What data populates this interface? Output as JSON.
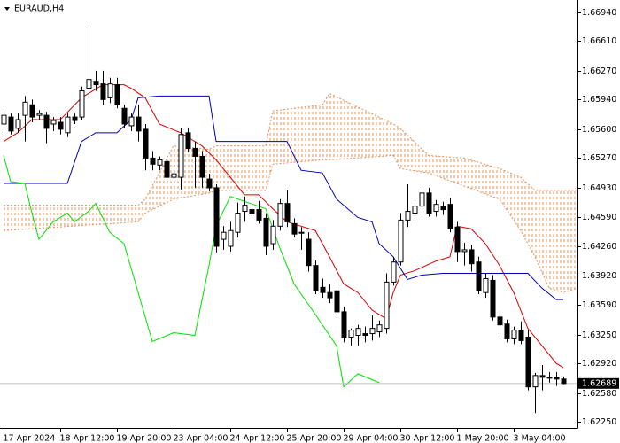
{
  "chart_data": {
    "type": "candlestick",
    "title": "EURAUD,H4",
    "categories": [
      "17 Apr 2024",
      null,
      null,
      null,
      null,
      null,
      null,
      null,
      "18 Apr 12:00",
      null,
      null,
      null,
      null,
      null,
      null,
      null,
      "19 Apr 20:00",
      null,
      null,
      null,
      null,
      null,
      null,
      null,
      "23 Apr 04:00",
      null,
      null,
      null,
      null,
      null,
      null,
      null,
      "24 Apr 12:00",
      null,
      null,
      null,
      null,
      null,
      null,
      null,
      "25 Apr 20:00",
      null,
      null,
      null,
      null,
      null,
      null,
      null,
      "29 Apr 04:00",
      null,
      null,
      null,
      null,
      null,
      null,
      null,
      "30 Apr 12:00",
      null,
      null,
      null,
      null,
      null,
      null,
      null,
      "1 May 20:00",
      null,
      null,
      null,
      null,
      null,
      null,
      null,
      "3 May 04:00",
      null,
      null,
      null,
      null,
      null,
      null,
      null
    ],
    "open": [
      1.6566,
      1.6574,
      1.6561,
      1.6576,
      1.6588,
      1.6576,
      1.6576,
      1.6566,
      1.6568,
      1.6556,
      1.6574,
      1.6574,
      1.6607,
      1.6615,
      1.6612,
      1.6596,
      1.6611,
      1.6584,
      1.6564,
      1.6574,
      1.656,
      1.6527,
      1.6519,
      1.6523,
      1.6505,
      1.6505,
      1.6556,
      1.6538,
      1.6529,
      1.6503,
      1.6493,
      1.6434,
      1.6426,
      1.6442,
      1.6466,
      1.6468,
      1.6468,
      1.6458,
      1.6429,
      1.6449,
      1.6475,
      1.6452,
      1.6442,
      1.6434,
      1.6404,
      1.6379,
      1.6373,
      1.6375,
      1.6351,
      1.6322,
      1.6324,
      1.6326,
      1.6326,
      1.6328,
      1.6332,
      1.6385,
      1.6408,
      1.6456,
      1.6464,
      1.6472,
      1.6487,
      1.6466,
      1.6472,
      1.6474,
      1.6448,
      1.642,
      1.6422,
      1.6408,
      1.6373,
      1.6387,
      1.6345,
      1.6337,
      1.632,
      1.633,
      1.6322,
      1.6265,
      1.6278,
      1.6276,
      1.6276,
      1.6274
    ],
    "high": [
      1.6581,
      1.6578,
      1.6578,
      1.6598,
      1.6594,
      1.6582,
      1.658,
      1.6574,
      1.6574,
      1.6578,
      1.6578,
      1.6609,
      1.6683,
      1.6627,
      1.6627,
      1.6619,
      1.6619,
      1.6588,
      1.6578,
      1.6588,
      1.6566,
      1.6535,
      1.6529,
      1.6527,
      1.6515,
      1.6561,
      1.6562,
      1.6546,
      1.6535,
      1.6509,
      1.6497,
      1.6449,
      1.6454,
      1.6476,
      1.6483,
      1.6475,
      1.6478,
      1.6464,
      1.6456,
      1.648,
      1.649,
      1.6458,
      1.6448,
      1.6442,
      1.641,
      1.6389,
      1.6383,
      1.6381,
      1.6357,
      1.6332,
      1.6336,
      1.6334,
      1.6347,
      1.6341,
      1.6395,
      1.6414,
      1.6464,
      1.6497,
      1.6479,
      1.6491,
      1.6493,
      1.6479,
      1.6477,
      1.6481,
      1.6454,
      1.643,
      1.6428,
      1.6414,
      1.6395,
      1.6393,
      1.6351,
      1.6342,
      1.6334,
      1.634,
      1.633,
      1.6281,
      1.629,
      1.6282,
      1.6282,
      1.6277
    ],
    "low": [
      1.6556,
      1.6554,
      1.6556,
      1.6546,
      1.6568,
      1.657,
      1.6544,
      1.6558,
      1.6554,
      1.6551,
      1.6566,
      1.657,
      1.6596,
      1.6604,
      1.6588,
      1.659,
      1.6584,
      1.6561,
      1.6558,
      1.6546,
      1.6513,
      1.6513,
      1.6513,
      1.6499,
      1.6489,
      1.6491,
      1.6534,
      1.6493,
      1.6493,
      1.6489,
      1.6419,
      1.6422,
      1.642,
      1.6436,
      1.6454,
      1.6458,
      1.6452,
      1.6416,
      1.6422,
      1.6444,
      1.6448,
      1.6436,
      1.6422,
      1.6397,
      1.6371,
      1.6367,
      1.6361,
      1.6347,
      1.6316,
      1.6312,
      1.6312,
      1.6316,
      1.6318,
      1.6322,
      1.6326,
      1.6381,
      1.6404,
      1.6448,
      1.6456,
      1.6462,
      1.646,
      1.646,
      1.6462,
      1.6442,
      1.6408,
      1.6404,
      1.6397,
      1.6371,
      1.6367,
      1.6341,
      1.6326,
      1.6316,
      1.6314,
      1.6314,
      1.6261,
      1.6235,
      1.6261,
      1.627,
      1.6266,
      1.6268
    ],
    "close": [
      1.6576,
      1.6558,
      1.6571,
      1.6591,
      1.6574,
      1.6578,
      1.6561,
      1.657,
      1.656,
      1.6574,
      1.657,
      1.6604,
      1.6617,
      1.6611,
      1.6594,
      1.6612,
      1.6588,
      1.6566,
      1.6574,
      1.6558,
      1.6527,
      1.652,
      1.6525,
      1.6505,
      1.6509,
      1.6554,
      1.6538,
      1.6529,
      1.6505,
      1.6493,
      1.6426,
      1.6442,
      1.6444,
      1.6464,
      1.6473,
      1.6464,
      1.6456,
      1.6426,
      1.6449,
      1.6475,
      1.6454,
      1.644,
      1.6442,
      1.6404,
      1.6375,
      1.6373,
      1.6367,
      1.6351,
      1.6322,
      1.633,
      1.6332,
      1.6324,
      1.6332,
      1.6336,
      1.6385,
      1.6408,
      1.6456,
      1.6466,
      1.6472,
      1.6487,
      1.6464,
      1.6474,
      1.6468,
      1.6446,
      1.642,
      1.6422,
      1.6406,
      1.6375,
      1.6389,
      1.6345,
      1.6336,
      1.632,
      1.633,
      1.6318,
      1.6265,
      1.6278,
      1.6276,
      1.6275,
      1.6274,
      1.62689
    ],
    "xlim": [
      -0.5,
      81
    ],
    "ylim": [
      1.6218,
      1.6708
    ],
    "yticks": [
      {
        "value": 1.6694,
        "label": "1.66940"
      },
      {
        "value": 1.6661,
        "label": "1.66610"
      },
      {
        "value": 1.6627,
        "label": "1.66270"
      },
      {
        "value": 1.6594,
        "label": "1.65940"
      },
      {
        "value": 1.656,
        "label": "1.65600"
      },
      {
        "value": 1.6527,
        "label": "1.65270"
      },
      {
        "value": 1.6493,
        "label": "1.64930"
      },
      {
        "value": 1.6459,
        "label": "1.64590"
      },
      {
        "value": 1.6426,
        "label": "1.64260"
      },
      {
        "value": 1.6392,
        "label": "1.63920"
      },
      {
        "value": 1.6359,
        "label": "1.63590"
      },
      {
        "value": 1.6325,
        "label": "1.63250"
      },
      {
        "value": 1.6292,
        "label": "1.62920"
      },
      {
        "value": 1.6258,
        "label": "1.62580"
      },
      {
        "value": 1.6225,
        "label": "1.62250"
      }
    ],
    "current_price": {
      "value": 1.62689,
      "label": "1.62689"
    },
    "lines": [
      {
        "color": "#d40000",
        "x": [
          0,
          2,
          4,
          8,
          11,
          14,
          17,
          18,
          20,
          22,
          25,
          28,
          30,
          34,
          36,
          38,
          40,
          42,
          44,
          46,
          48,
          50,
          52,
          54,
          55,
          56,
          58,
          61,
          63,
          64,
          66,
          68,
          70,
          72,
          74,
          76,
          78,
          79
        ],
        "values": [
          1.6546,
          1.6556,
          1.6571,
          1.6571,
          1.6596,
          1.6611,
          1.6611,
          1.6607,
          1.6596,
          1.6566,
          1.6556,
          1.6541,
          1.6525,
          1.6485,
          1.6485,
          1.6469,
          1.6454,
          1.6449,
          1.6444,
          1.6414,
          1.6383,
          1.6373,
          1.6353,
          1.6343,
          1.6373,
          1.6393,
          1.6398,
          1.6409,
          1.6414,
          1.6449,
          1.6446,
          1.6429,
          1.6404,
          1.6373,
          1.6332,
          1.6312,
          1.6292,
          1.6287
        ]
      },
      {
        "color": "#0000b4",
        "x": [
          0,
          9,
          11,
          13,
          16,
          18,
          19,
          22,
          29,
          30,
          37,
          40,
          42,
          45,
          47,
          50,
          52,
          53,
          55,
          57,
          59,
          62,
          66,
          72,
          74,
          76,
          78,
          79
        ],
        "values": [
          1.6498,
          1.6498,
          1.6546,
          1.6556,
          1.6556,
          1.6571,
          1.6596,
          1.6598,
          1.6598,
          1.6546,
          1.6546,
          1.6546,
          1.6513,
          1.651,
          1.648,
          1.6459,
          1.6454,
          1.6429,
          1.6414,
          1.6388,
          1.6393,
          1.6395,
          1.6395,
          1.6395,
          1.6395,
          1.6378,
          1.6365,
          1.6365
        ]
      },
      {
        "color": "#00e000",
        "x": [
          0,
          1,
          3,
          4,
          5,
          7,
          9,
          10,
          12,
          13,
          15,
          17,
          21,
          24,
          27,
          29,
          30,
          32,
          37,
          39,
          41,
          44,
          47,
          48,
          50,
          53
        ],
        "values": [
          1.653,
          1.65,
          1.6498,
          1.6464,
          1.6434,
          1.6454,
          1.6464,
          1.6454,
          1.6466,
          1.6475,
          1.6442,
          1.6429,
          1.6317,
          1.6327,
          1.6324,
          1.6404,
          1.6449,
          1.6483,
          1.6469,
          1.6424,
          1.6383,
          1.6348,
          1.6312,
          1.6265,
          1.628,
          1.627
        ]
      }
    ],
    "cloud": {
      "color": "#e0905a",
      "x": [
        0,
        19,
        20,
        24,
        29,
        30,
        37,
        38,
        45,
        46,
        55,
        56,
        60,
        65,
        70,
        73,
        75,
        77,
        79,
        81
      ],
      "span_a": [
        1.6473,
        1.6473,
        1.648,
        1.6541,
        1.6537,
        1.6541,
        1.6541,
        1.6581,
        1.6588,
        1.6601,
        1.6566,
        1.6561,
        1.653,
        1.6527,
        1.6515,
        1.6505,
        1.649,
        1.649,
        1.649,
        1.649
      ],
      "span_b": [
        1.6444,
        1.6454,
        1.6464,
        1.648,
        1.6487,
        1.649,
        1.649,
        1.652,
        1.6525,
        1.6525,
        1.653,
        1.6515,
        1.651,
        1.6495,
        1.648,
        1.6444,
        1.6414,
        1.6378,
        1.6373,
        1.6378
      ]
    }
  }
}
